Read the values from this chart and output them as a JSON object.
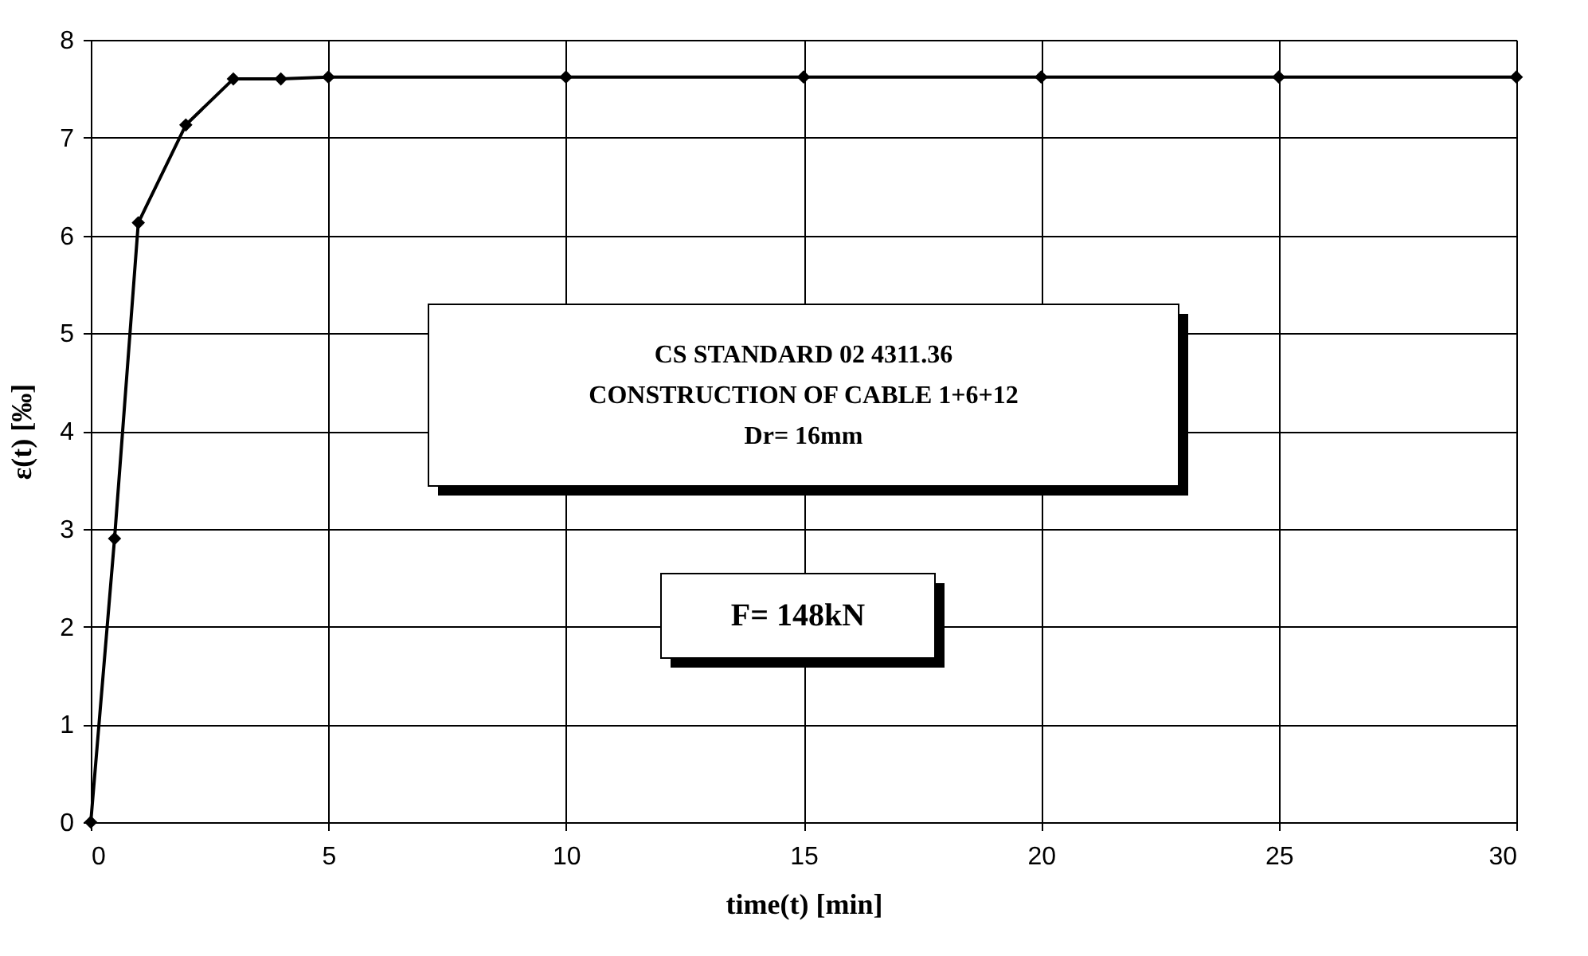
{
  "chart_data": {
    "type": "line",
    "xlabel": "time(t) [min]",
    "ylabel": "ε(t) [‰]",
    "x": [
      0,
      0.5,
      1,
      2,
      3,
      4,
      5,
      10,
      15,
      20,
      25,
      30
    ],
    "series": [
      {
        "color": "#000000",
        "values": [
          0,
          2.9,
          6.13,
          7.13,
          7.6,
          7.6,
          7.62,
          7.62,
          7.62,
          7.62,
          7.62,
          7.62
        ]
      }
    ],
    "xlim": [
      0,
      30
    ],
    "xticks": [
      0,
      5,
      10,
      15,
      20,
      25,
      30
    ],
    "ylim": [
      0,
      8
    ],
    "yticks": [
      0,
      1,
      2,
      3,
      4,
      5,
      6,
      7,
      8
    ],
    "grid": true,
    "marker": "diamond",
    "line_style": "solid",
    "annotations": [
      "CS STANDARD 02 4311.36\n    CONSTRUCTION OF CABLE 1+6+12\nDr= 16mm",
      "F= 148kN"
    ]
  }
}
